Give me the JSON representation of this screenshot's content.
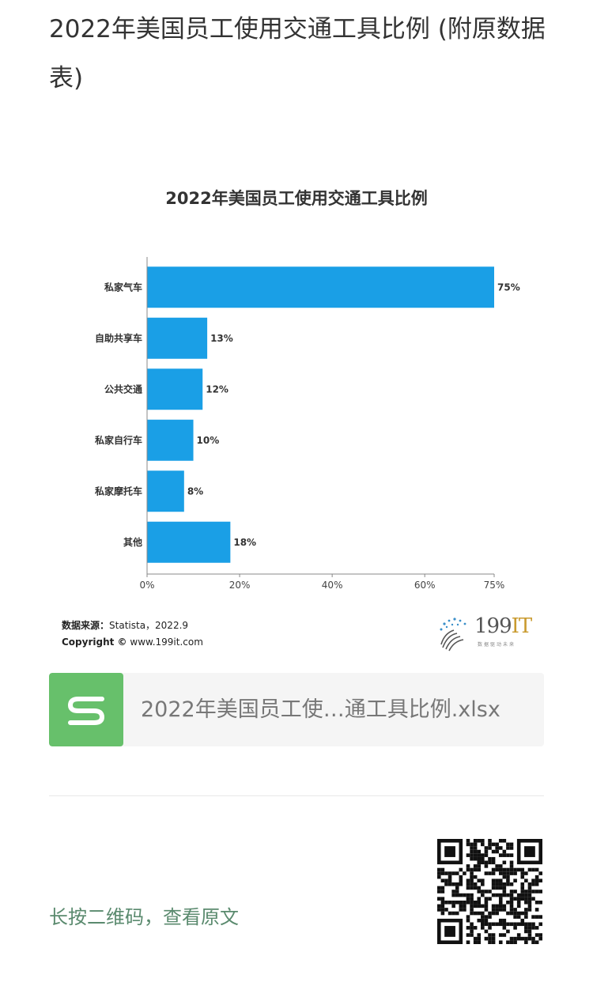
{
  "article": {
    "title": "2022年美国员工使用交通工具比例 (附原数据表)"
  },
  "chart_data": {
    "type": "bar",
    "orientation": "horizontal",
    "title": "2022年美国员工使用交通工具比例",
    "categories": [
      "私家气车",
      "自助共享车",
      "公共交通",
      "私家自行车",
      "私家摩托车",
      "其他"
    ],
    "values": [
      75,
      13,
      12,
      10,
      8,
      18
    ],
    "value_labels": [
      "75%",
      "13%",
      "12%",
      "10%",
      "8%",
      "18%"
    ],
    "x_ticks": [
      0,
      20,
      40,
      60,
      75
    ],
    "x_tick_labels": [
      "0%",
      "20%",
      "40%",
      "60%",
      "75%"
    ],
    "xlim": [
      0,
      75
    ],
    "xlabel": "",
    "ylabel": "",
    "bar_color": "#1a9fe6",
    "grid": false
  },
  "source": {
    "label": "数据来源：",
    "value": "Statista，2022.9",
    "copyright": "Copyright ©",
    "site": "www.199it.com"
  },
  "brand": {
    "main": "199",
    "accent": "IT",
    "tagline": "数据驱动未来"
  },
  "file": {
    "icon": "s-logo-icon",
    "name": "2022年美国员工使…通工具比例.xlsx",
    "icon_color": "#67c06b"
  },
  "footer": {
    "hint": "长按二维码，查看原文"
  }
}
